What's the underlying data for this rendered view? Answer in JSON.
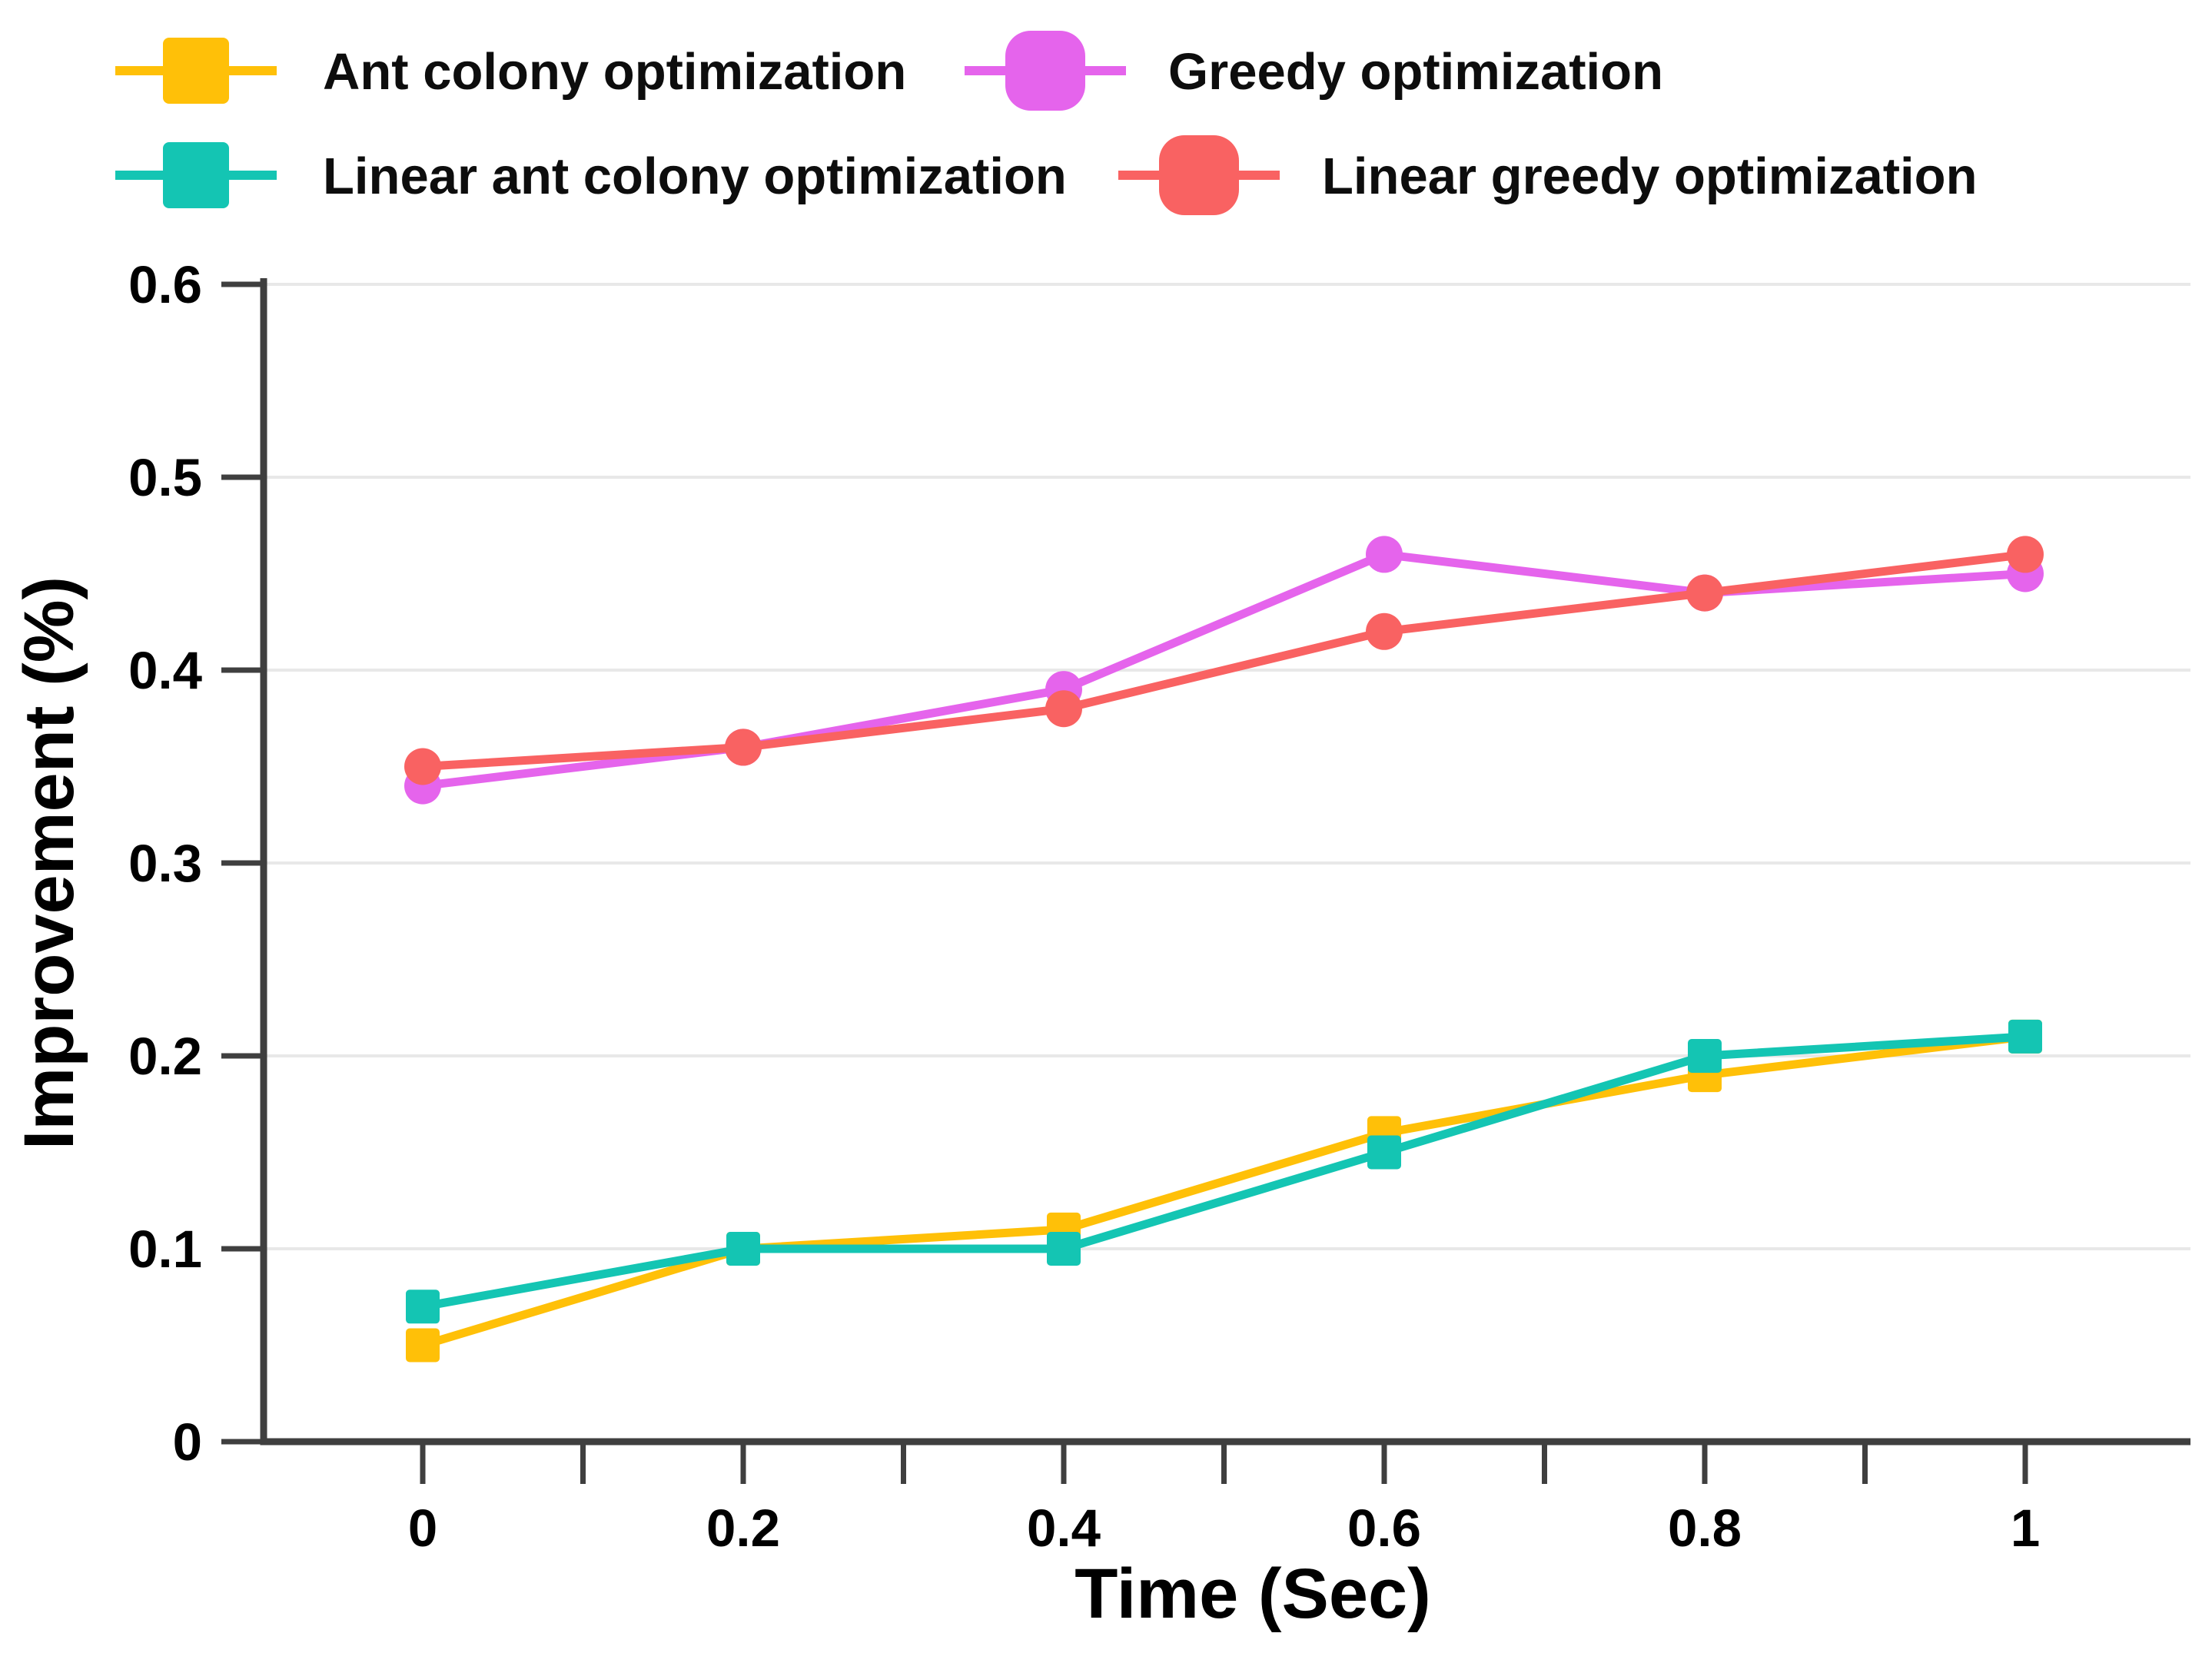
{
  "figure": {
    "background": "#ffffff",
    "axis_color": "#3f3f3f",
    "grid_color": "#e8e8e8",
    "text_color": "#000000"
  },
  "legend": {
    "position": "top",
    "items": [
      {
        "label": "Ant colony optimization",
        "color": "#FFC008",
        "marker": "square"
      },
      {
        "label": "Greedy optimization",
        "color": "#E564EC",
        "marker": "round"
      },
      {
        "label": "Linear ant colony optimization",
        "color": "#14C5B3",
        "marker": "square"
      },
      {
        "label": "Linear greedy optimization",
        "color": "#F96262",
        "marker": "round"
      }
    ]
  },
  "chart_data": {
    "type": "line",
    "x": [
      0,
      0.2,
      0.4,
      0.6,
      0.8,
      1
    ],
    "series": [
      {
        "name": "Ant colony optimization",
        "color": "#FFC008",
        "marker": "square",
        "values": [
          0.05,
          0.1,
          0.11,
          0.16,
          0.19,
          0.21
        ]
      },
      {
        "name": "Greedy optimization",
        "color": "#E564EC",
        "marker": "circle",
        "values": [
          0.34,
          0.36,
          0.39,
          0.46,
          0.44,
          0.45
        ]
      },
      {
        "name": "Linear ant colony optimization",
        "color": "#14C5B3",
        "marker": "square",
        "values": [
          0.07,
          0.1,
          0.1,
          0.15,
          0.2,
          0.21
        ]
      },
      {
        "name": "Linear greedy optimization",
        "color": "#F96262",
        "marker": "circle",
        "values": [
          0.35,
          0.36,
          0.38,
          0.42,
          0.44,
          0.46
        ]
      }
    ],
    "xlabel": "Time (Sec)",
    "ylabel": "Improvement (%)",
    "ylim": [
      0,
      0.6
    ],
    "yticks": [
      0,
      0.1,
      0.2,
      0.3,
      0.4,
      0.5,
      0.6
    ],
    "xticks_labeled": [
      0,
      0.2,
      0.4,
      0.6,
      0.8,
      1
    ],
    "xticks_minor_step": 0.1,
    "grid": "horizontal"
  }
}
